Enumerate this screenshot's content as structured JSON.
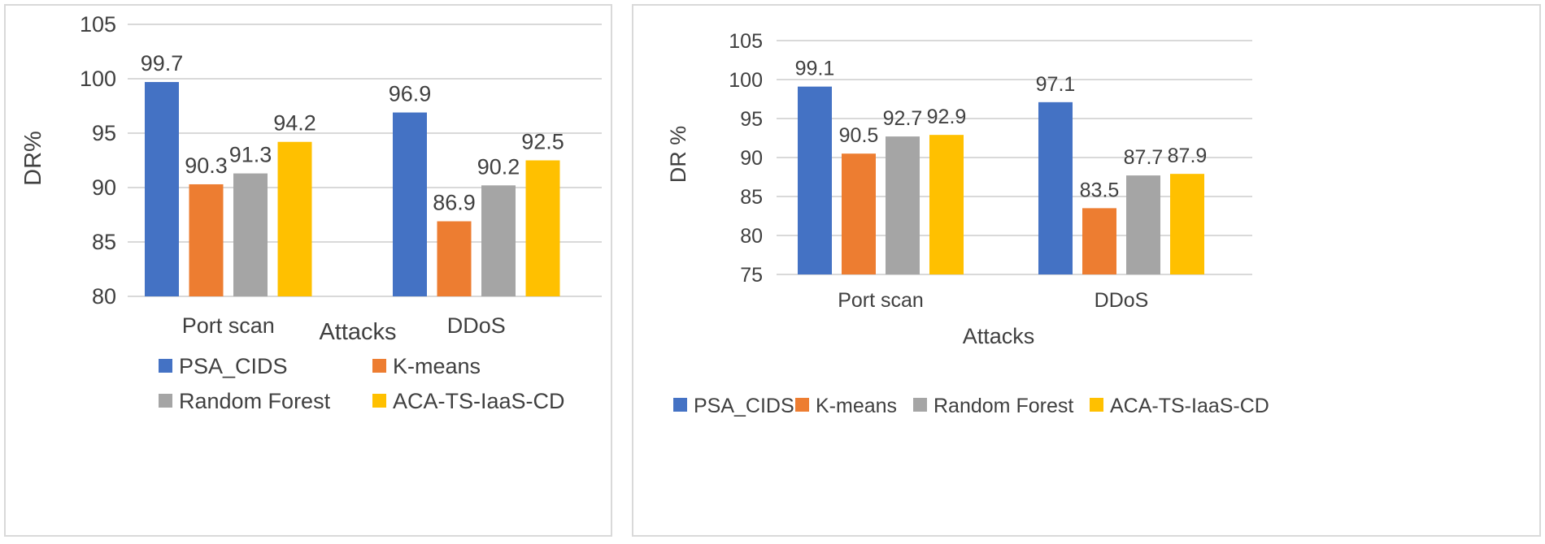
{
  "colors": {
    "PSA_CIDS": "#4472c4",
    "K-means": "#ed7d31",
    "Random Forest": "#a5a5a5",
    "ACA-TS-IaaS-CD": "#ffc000",
    "grid": "#d9d9d9",
    "border": "#d9d9d9"
  },
  "chart_data": [
    {
      "type": "bar",
      "title": "",
      "xlabel": "Attacks",
      "ylabel": "DR%",
      "ylim": [
        80,
        105
      ],
      "yticks": [
        "80",
        "85",
        "90",
        "95",
        "100",
        "105"
      ],
      "categories": [
        "Port scan",
        "DDoS"
      ],
      "series": [
        {
          "name": "PSA_CIDS",
          "values": [
            99.7,
            96.9
          ],
          "labels": [
            "99.7",
            "96.9"
          ]
        },
        {
          "name": "K-means",
          "values": [
            90.3,
            86.9
          ],
          "labels": [
            "90.3",
            "86.9"
          ]
        },
        {
          "name": "Random Forest",
          "values": [
            91.3,
            90.2
          ],
          "labels": [
            "91.3",
            "90.2"
          ]
        },
        {
          "name": "ACA-TS-IaaS-CD",
          "values": [
            94.2,
            92.5
          ],
          "labels": [
            "94.2",
            "92.5"
          ]
        }
      ],
      "grid": true,
      "legend": "bottom (2x2)"
    },
    {
      "type": "bar",
      "title": "",
      "xlabel": "Attacks",
      "ylabel": "DR %",
      "ylim": [
        75,
        105
      ],
      "yticks": [
        "75",
        "80",
        "85",
        "90",
        "95",
        "100",
        "105"
      ],
      "categories": [
        "Port scan",
        "DDoS"
      ],
      "series": [
        {
          "name": "PSA_CIDS",
          "values": [
            99.1,
            97.1
          ],
          "labels": [
            "99.1",
            "97.1"
          ]
        },
        {
          "name": "K-means",
          "values": [
            90.5,
            83.5
          ],
          "labels": [
            "90.5",
            "83.5"
          ]
        },
        {
          "name": "Random Forest",
          "values": [
            92.7,
            87.7
          ],
          "labels": [
            "92.7",
            "87.7"
          ]
        },
        {
          "name": "ACA-TS-IaaS-CD",
          "values": [
            92.9,
            87.9
          ],
          "labels": [
            "92.9",
            "87.9"
          ]
        }
      ],
      "grid": true,
      "legend": "bottom (single row)"
    }
  ]
}
